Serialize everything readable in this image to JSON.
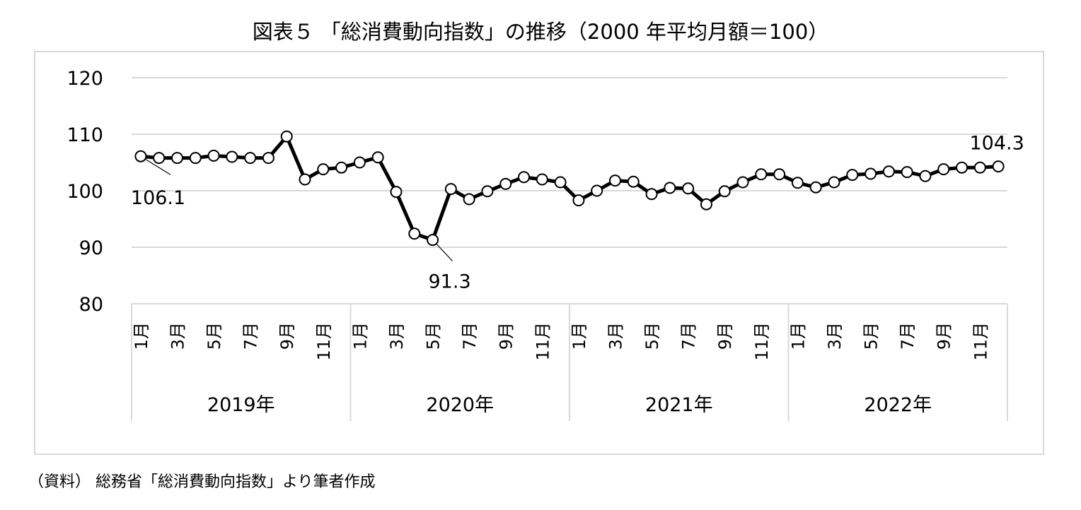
{
  "chart_data": {
    "type": "line",
    "title": "図表５ 「総消費動向指数」の推移（2000 年平均月額＝100）",
    "xlabel": "",
    "ylabel": "",
    "ylim": [
      80,
      120
    ],
    "yticks": [
      "120",
      "110",
      "100",
      "90",
      "80"
    ],
    "grid": true,
    "legend": "none",
    "series_color": "#000000",
    "gridline_color": "#d9d9d9",
    "years": [
      "2019年",
      "2020年",
      "2021年",
      "2022年"
    ],
    "month_tick_labels": [
      "1月",
      "",
      "3月",
      "",
      "5月",
      "",
      "7月",
      "",
      "9月",
      "",
      "11月",
      ""
    ],
    "x": [
      "2019-01",
      "2019-02",
      "2019-03",
      "2019-04",
      "2019-05",
      "2019-06",
      "2019-07",
      "2019-08",
      "2019-09",
      "2019-10",
      "2019-11",
      "2019-12",
      "2020-01",
      "2020-02",
      "2020-03",
      "2020-04",
      "2020-05",
      "2020-06",
      "2020-07",
      "2020-08",
      "2020-09",
      "2020-10",
      "2020-11",
      "2020-12",
      "2021-01",
      "2021-02",
      "2021-03",
      "2021-04",
      "2021-05",
      "2021-06",
      "2021-07",
      "2021-08",
      "2021-09",
      "2021-10",
      "2021-11",
      "2021-12",
      "2022-01",
      "2022-02",
      "2022-03",
      "2022-04",
      "2022-05",
      "2022-06",
      "2022-07",
      "2022-08",
      "2022-09",
      "2022-10",
      "2022-11",
      "2022-12"
    ],
    "values": [
      106.1,
      105.8,
      105.8,
      105.8,
      106.2,
      106.0,
      105.8,
      105.8,
      109.6,
      102.0,
      103.8,
      104.1,
      105.0,
      105.9,
      99.8,
      92.4,
      91.3,
      100.3,
      98.5,
      99.9,
      101.2,
      102.4,
      102.0,
      101.5,
      98.3,
      100.0,
      101.8,
      101.6,
      99.4,
      100.5,
      100.4,
      97.6,
      99.9,
      101.5,
      102.9,
      102.9,
      101.4,
      100.6,
      101.5,
      102.8,
      103.0,
      103.4,
      103.3,
      102.6,
      103.8,
      104.1,
      104.1,
      104.3
    ],
    "annotations": [
      {
        "text": "106.1",
        "index": 0
      },
      {
        "text": "91.3",
        "index": 16
      },
      {
        "text": "104.3",
        "index": 47
      }
    ]
  },
  "source_note": "（資料） 総務省「総消費動向指数」より筆者作成"
}
